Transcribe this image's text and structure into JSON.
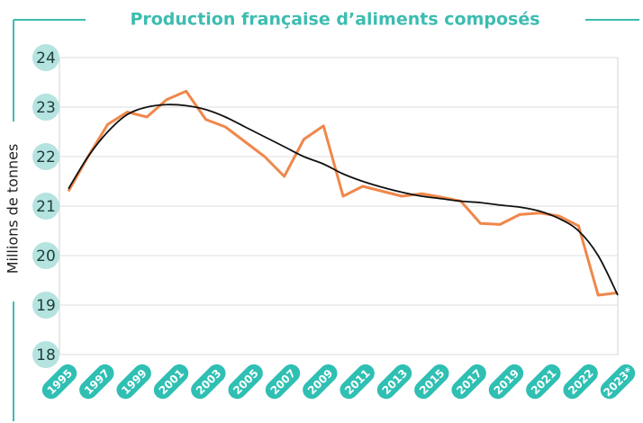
{
  "chart_data": {
    "type": "line",
    "title": "Production française d’aliments composés",
    "y_label": "Millions de tonnes",
    "categories": [
      "1995",
      null,
      "1997",
      null,
      "1999",
      null,
      "2001",
      null,
      "2003",
      null,
      "2005",
      null,
      "2007",
      null,
      "2009",
      null,
      "2011",
      null,
      "2013",
      null,
      "2015",
      null,
      "2017",
      null,
      "2019",
      null,
      "2021",
      "2022",
      "2023*"
    ],
    "series": [
      {
        "color": "#f0874a",
        "values": [
          21.3,
          22.0,
          22.65,
          22.9,
          22.8,
          23.15,
          23.32,
          22.75,
          22.6,
          22.3,
          22.0,
          21.6,
          22.35,
          22.62,
          21.2,
          21.4,
          21.3,
          21.2,
          21.25,
          21.18,
          21.1,
          20.65,
          20.63,
          20.83,
          20.86,
          20.8,
          20.6,
          19.2,
          19.25
        ]
      },
      {
        "color": "#111111",
        "values": [
          21.35,
          22.0,
          22.5,
          22.85,
          23.0,
          23.05,
          23.03,
          22.95,
          22.8,
          22.6,
          22.4,
          22.2,
          22.0,
          21.85,
          21.65,
          21.5,
          21.38,
          21.28,
          21.2,
          21.15,
          21.1,
          21.07,
          21.02,
          20.98,
          20.9,
          20.75,
          20.5,
          20.0,
          19.2
        ]
      }
    ],
    "ylim": [
      18,
      24
    ],
    "yticks": [
      18,
      19,
      20,
      21,
      22,
      23,
      24
    ],
    "grid": true
  }
}
